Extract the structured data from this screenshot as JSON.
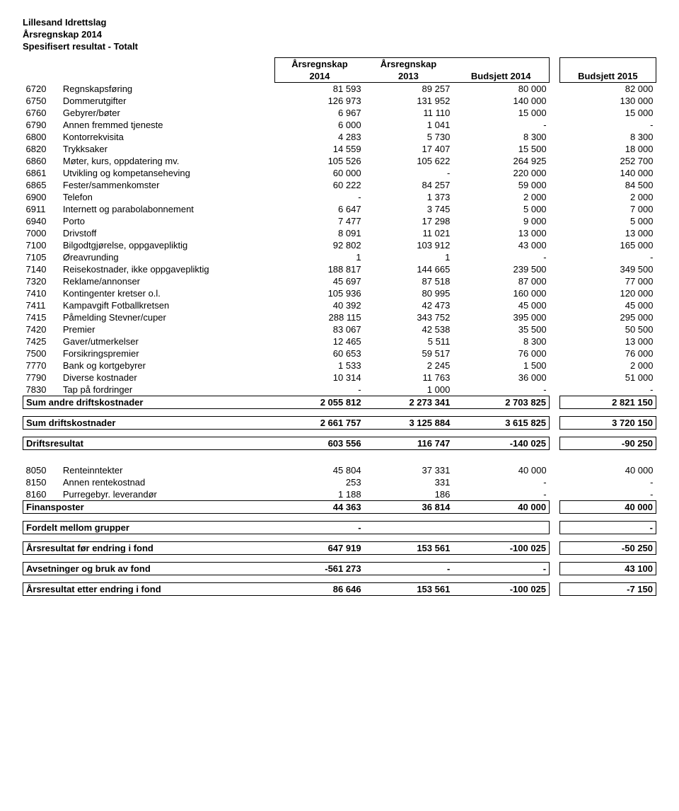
{
  "header": {
    "line1": "Lillesand Idrettslag",
    "line2": "Årsregnskap 2014",
    "line3": "Spesifisert resultat  - Totalt"
  },
  "colhead": {
    "top": [
      "Årsregnskap",
      "Årsregnskap",
      "",
      ""
    ],
    "bot": [
      "2014",
      "2013",
      "Budsjett 2014",
      "Budsjett  2015"
    ]
  },
  "rows": [
    {
      "code": "6720",
      "desc": "Regnskapsføring",
      "v": [
        "81 593",
        "89 257",
        "80 000",
        "82 000"
      ]
    },
    {
      "code": "6750",
      "desc": "Dommerutgifter",
      "v": [
        "126 973",
        "131 952",
        "140 000",
        "130 000"
      ]
    },
    {
      "code": "6760",
      "desc": "Gebyrer/bøter",
      "v": [
        "6 967",
        "11 110",
        "15 000",
        "15 000"
      ]
    },
    {
      "code": "6790",
      "desc": "Annen fremmed tjeneste",
      "v": [
        "6 000",
        "1 041",
        "-",
        "-"
      ]
    },
    {
      "code": "6800",
      "desc": "Kontorrekvisita",
      "v": [
        "4 283",
        "5 730",
        "8 300",
        "8 300"
      ]
    },
    {
      "code": "6820",
      "desc": "Trykksaker",
      "v": [
        "14 559",
        "17 407",
        "15 500",
        "18 000"
      ]
    },
    {
      "code": "6860",
      "desc": "Møter, kurs, oppdatering mv.",
      "v": [
        "105 526",
        "105 622",
        "264 925",
        "252 700"
      ]
    },
    {
      "code": "6861",
      "desc": "Utvikling og kompetanseheving",
      "v": [
        "60 000",
        "-",
        "220 000",
        "140 000"
      ]
    },
    {
      "code": "6865",
      "desc": "Fester/sammenkomster",
      "v": [
        "60 222",
        "84 257",
        "59 000",
        "84 500"
      ]
    },
    {
      "code": "6900",
      "desc": "Telefon",
      "v": [
        "-",
        "1 373",
        "2 000",
        "2 000"
      ]
    },
    {
      "code": "6911",
      "desc": "Internett og parabolabonnement",
      "v": [
        "6 647",
        "3 745",
        "5 000",
        "7 000"
      ]
    },
    {
      "code": "6940",
      "desc": "Porto",
      "v": [
        "7 477",
        "17 298",
        "9 000",
        "5 000"
      ]
    },
    {
      "code": "7000",
      "desc": "Drivstoff",
      "v": [
        "8 091",
        "11 021",
        "13 000",
        "13 000"
      ]
    },
    {
      "code": "7100",
      "desc": "Bilgodtgjørelse, oppgavepliktig",
      "v": [
        "92 802",
        "103 912",
        "43 000",
        "165 000"
      ]
    },
    {
      "code": "7105",
      "desc": "Øreavrunding",
      "v": [
        "1",
        "1",
        "-",
        "-"
      ]
    },
    {
      "code": "7140",
      "desc": "Reisekostnader, ikke oppgavepliktig",
      "v": [
        "188 817",
        "144 665",
        "239 500",
        "349 500"
      ]
    },
    {
      "code": "7320",
      "desc": "Reklame/annonser",
      "v": [
        "45 697",
        "87 518",
        "87 000",
        "77 000"
      ]
    },
    {
      "code": "7410",
      "desc": "Kontingenter kretser o.l.",
      "v": [
        "105 936",
        "80 995",
        "160 000",
        "120 000"
      ]
    },
    {
      "code": "7411",
      "desc": "Kampavgift Fotballkretsen",
      "v": [
        "40 392",
        "42 473",
        "45 000",
        "45 000"
      ]
    },
    {
      "code": "7415",
      "desc": "Påmelding Stevner/cuper",
      "v": [
        "288 115",
        "343 752",
        "395 000",
        "295 000"
      ]
    },
    {
      "code": "7420",
      "desc": "Premier",
      "v": [
        "83 067",
        "42 538",
        "35 500",
        "50 500"
      ]
    },
    {
      "code": "7425",
      "desc": "Gaver/utmerkelser",
      "v": [
        "12 465",
        "5 511",
        "8 300",
        "13 000"
      ]
    },
    {
      "code": "7500",
      "desc": "Forsikringspremier",
      "v": [
        "60 653",
        "59 517",
        "76 000",
        "76 000"
      ]
    },
    {
      "code": "7770",
      "desc": "Bank og kortgebyrer",
      "v": [
        "1 533",
        "2 245",
        "1 500",
        "2 000"
      ]
    },
    {
      "code": "7790",
      "desc": "Diverse kostnader",
      "v": [
        "10 314",
        "11 763",
        "36 000",
        "51 000"
      ]
    },
    {
      "code": "7830",
      "desc": "Tap på fordringer",
      "v": [
        "-",
        "1 000",
        "-",
        "-"
      ]
    }
  ],
  "sum_andre": {
    "label": "Sum andre driftskostnader",
    "v": [
      "2 055 812",
      "2 273 341",
      "2 703 825",
      "2 821 150"
    ]
  },
  "sum_drift": {
    "label": "Sum driftskostnader",
    "v": [
      "2 661 757",
      "3 125 884",
      "3 615 825",
      "3 720 150"
    ]
  },
  "driftsresultat": {
    "label": "Driftsresultat",
    "v": [
      "603 556",
      "116 747",
      "-140 025",
      "-90 250"
    ]
  },
  "fin_rows": [
    {
      "code": "8050",
      "desc": "Renteinntekter",
      "v": [
        "45 804",
        "37 331",
        "40 000",
        "40 000"
      ]
    },
    {
      "code": "8150",
      "desc": "Annen rentekostnad",
      "v": [
        "253",
        "331",
        "-",
        "-"
      ]
    },
    {
      "code": "8160",
      "desc": "Purregebyr. leverandør",
      "v": [
        "1 188",
        "186",
        "-",
        "-"
      ]
    }
  ],
  "finansposter": {
    "label": "Finansposter",
    "v": [
      "44 363",
      "36 814",
      "40 000",
      "40 000"
    ]
  },
  "fordelt": {
    "label": "Fordelt mellom grupper",
    "v": [
      "-",
      "",
      "",
      "-"
    ]
  },
  "aar_for": {
    "label": "Årsresultat før endring i fond",
    "v": [
      "647 919",
      "153 561",
      "-100 025",
      "-50 250"
    ]
  },
  "avsetninger": {
    "label": "Avsetninger og bruk av fond",
    "v": [
      "-561 273",
      "-",
      "-",
      "43 100"
    ]
  },
  "aar_etter": {
    "label": "Årsresultat etter endring i fond",
    "v": [
      "86 646",
      "153 561",
      "-100 025",
      "-7 150"
    ]
  }
}
